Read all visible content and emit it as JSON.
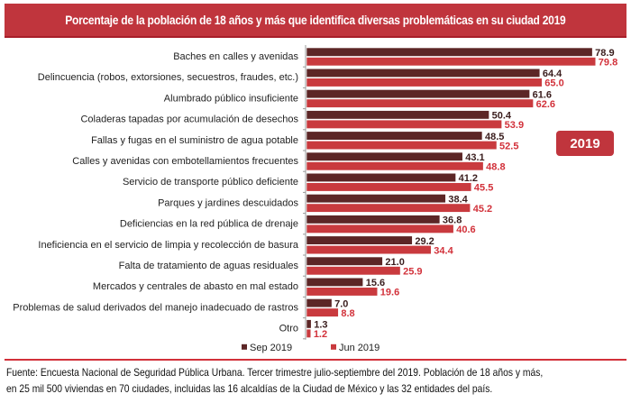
{
  "header": {
    "title": "Porcentaje de la población de 18 años y más que identifica diversas problemáticas en su ciudad 2019"
  },
  "badge": {
    "label": "2019"
  },
  "footer": {
    "line1": "Fuente: Encuesta Nacional de Seguridad Pública Urbana. Tercer trimestre julio-septiembre del 2019. Población de 18 años y más,",
    "line2": "en 25 mil 500 viviendas en 70 ciudades, incluidas las 16 alcaldías de la Ciudad de México y las 32 entidades del país."
  },
  "colors": {
    "sep": "#5c2626",
    "jun": "#c93a3e",
    "title_bg": "#c0353d"
  },
  "chart_data": {
    "type": "bar",
    "orientation": "horizontal",
    "title": "Porcentaje de la población de 18 años y más que identifica diversas problemáticas en su ciudad 2019",
    "xlabel": "",
    "ylabel": "",
    "xlim": [
      0,
      80
    ],
    "grid": false,
    "legend": "bottom",
    "categories": [
      "Baches en calles y avenidas",
      "Delincuencia (robos, extorsiones, secuestros, fraudes, etc.)",
      "Alumbrado público insuficiente",
      "Coladeras tapadas por acumulación de desechos",
      "Fallas y fugas en el suministro de agua potable",
      "Calles y avenidas con embotellamientos frecuentes",
      "Servicio de transporte público deficiente",
      "Parques y jardines descuidados",
      "Deficiencias en la red pública de drenaje",
      "Ineficiencia en el servicio de limpia y recolección de basura",
      "Falta de tratamiento de aguas residuales",
      "Mercados y centrales de abasto en mal estado",
      "Problemas de salud derivados del manejo inadecuado de rastros",
      "Otro"
    ],
    "series": [
      {
        "name": "Sep 2019",
        "values": [
          78.9,
          64.4,
          61.6,
          50.4,
          48.5,
          43.1,
          41.2,
          38.4,
          36.8,
          29.2,
          21.0,
          15.6,
          7.0,
          1.3
        ],
        "labels": [
          "78.9",
          "64.4",
          "61.6",
          "50.4",
          "48.5",
          "43.1",
          "41.2",
          "38.4",
          "36.8",
          "29.2",
          "21.0",
          "15.6",
          "7.0",
          "1.3"
        ]
      },
      {
        "name": "Jun 2019",
        "values": [
          79.8,
          65.0,
          62.6,
          53.9,
          52.5,
          48.8,
          45.5,
          45.2,
          40.6,
          34.4,
          25.9,
          19.6,
          8.8,
          1.2
        ],
        "labels": [
          "79.8",
          "65.0",
          "62.6",
          "53.9",
          "52.5",
          "48.8",
          "45.5",
          "45.2",
          "40.6",
          "34.4",
          "25.9",
          "19.6",
          "8.8",
          "1.2"
        ]
      }
    ]
  }
}
